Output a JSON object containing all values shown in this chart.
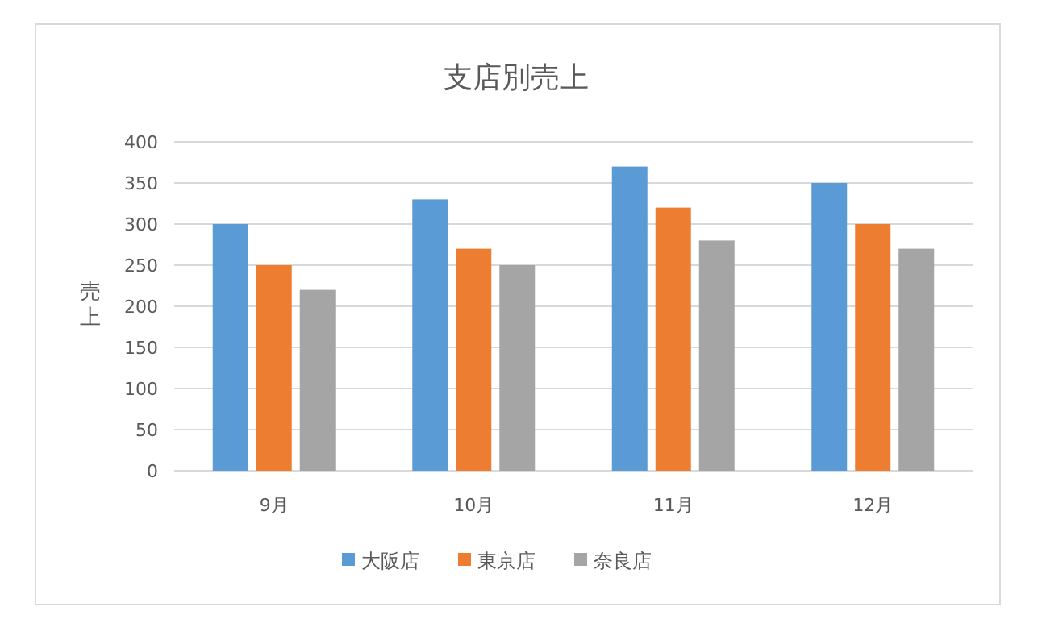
{
  "chart_data": {
    "type": "bar",
    "title": "支店別売上",
    "ylabel": "売上",
    "categories": [
      "9月",
      "10月",
      "11月",
      "12月"
    ],
    "series": [
      {
        "name": "大阪店",
        "color": "#5b9bd5",
        "values": [
          300,
          330,
          370,
          350
        ]
      },
      {
        "name": "東京店",
        "color": "#ed7d31",
        "values": [
          250,
          270,
          320,
          300
        ]
      },
      {
        "name": "奈良店",
        "color": "#a5a5a5",
        "values": [
          220,
          250,
          280,
          270
        ]
      }
    ],
    "ylim": [
      0,
      400
    ],
    "yticks": [
      0,
      50,
      100,
      150,
      200,
      250,
      300,
      350,
      400
    ],
    "grid": "y",
    "legend": "bottom"
  }
}
